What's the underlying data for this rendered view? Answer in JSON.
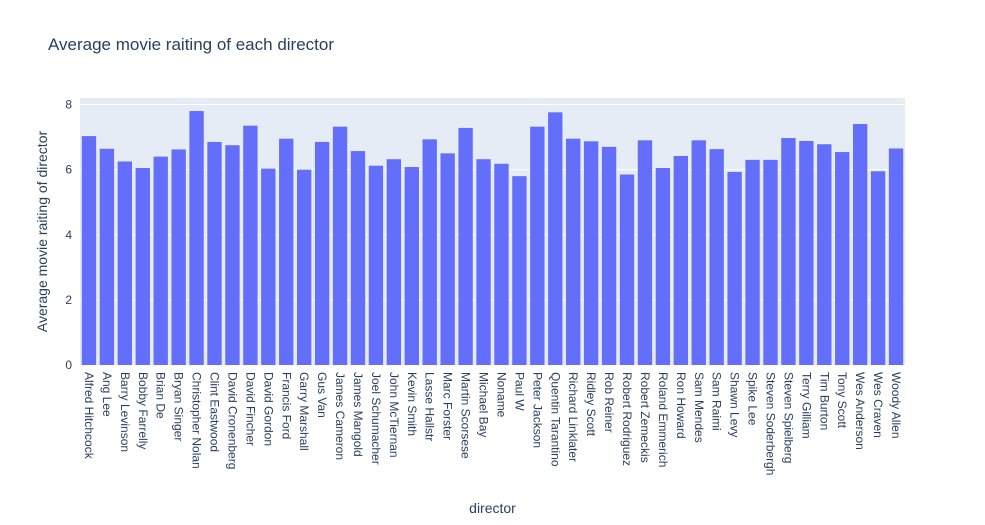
{
  "chart_data": {
    "type": "bar",
    "title": "Average movie raiting of each director",
    "xlabel": "director",
    "ylabel": "Average movie raiting of director",
    "ylim": [
      0,
      8.2
    ],
    "yticks": [
      0,
      2,
      4,
      6,
      8
    ],
    "grid": true,
    "legend": "none",
    "categories": [
      "Alfred Hitchcock",
      "Ang Lee",
      "Barry Levinson",
      "Bobby Farrelly",
      "Brian De",
      "Bryan Singer",
      "Christopher Nolan",
      "Clint Eastwood",
      "David Cronenberg",
      "David Fincher",
      "David Gordon",
      "Francis Ford",
      "Garry Marshall",
      "Gus Van",
      "James Cameron",
      "James Mangold",
      "Joel Schumacher",
      "John McTiernan",
      "Kevin Smith",
      "Lasse Hallstr",
      "Marc Forster",
      "Martin Scorsese",
      "Michael Bay",
      "Noname",
      "Paul W",
      "Peter Jackson",
      "Quentin Tarantino",
      "Richard Linklater",
      "Ridley Scott",
      "Rob Reiner",
      "Robert Rodriguez",
      "Robert Zemeckis",
      "Roland Emmerich",
      "Ron Howard",
      "Sam Mendes",
      "Sam Raimi",
      "Shawn Levy",
      "Spike Lee",
      "Steven Soderbergh",
      "Steven Spielberg",
      "Terry Gilliam",
      "Tim Burton",
      "Tony Scott",
      "Wes Anderson",
      "Wes Craven",
      "Woody Allen"
    ],
    "values": [
      7.03,
      6.64,
      6.25,
      6.05,
      6.4,
      6.62,
      7.8,
      6.85,
      6.75,
      7.35,
      6.03,
      6.95,
      6.0,
      6.85,
      7.32,
      6.57,
      6.12,
      6.32,
      6.08,
      6.93,
      6.5,
      7.28,
      6.32,
      6.18,
      5.8,
      7.32,
      7.76,
      6.95,
      6.87,
      6.7,
      5.85,
      6.9,
      6.05,
      6.42,
      6.9,
      6.63,
      5.93,
      6.3,
      6.3,
      6.97,
      6.88,
      6.78,
      6.54,
      7.4,
      5.95,
      6.65
    ],
    "colors": {
      "bar": "#636efa",
      "plot_bg": "#e5ecf6",
      "grid": "#ffffff",
      "text": "#2a3f5f"
    }
  }
}
